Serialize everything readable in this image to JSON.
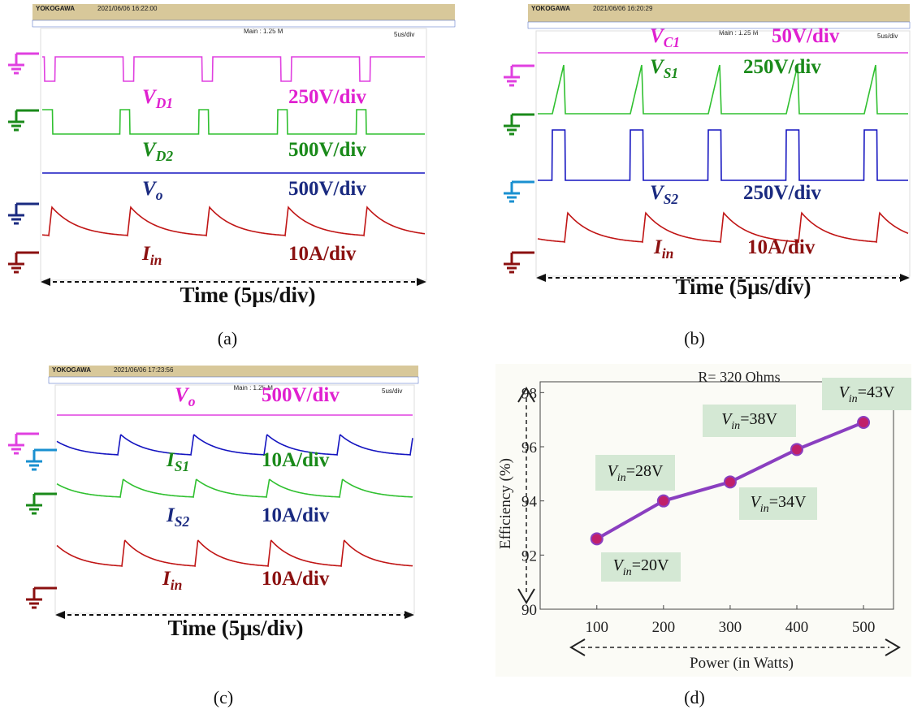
{
  "panels": [
    {
      "header": {
        "brand": "YOKOGAWA",
        "date": "2021/06/06 16:22:00",
        "main": "Main : 1.25 M",
        "timebase": "5us/div"
      },
      "traces": [
        {
          "label": "V",
          "sub": "D1",
          "scale": "250V/div"
        },
        {
          "label": "V",
          "sub": "D2",
          "scale": "500V/div"
        },
        {
          "label": "V",
          "sub": "o",
          "scale": "500V/div"
        },
        {
          "label": "I",
          "sub": "in",
          "scale": "10A/div"
        }
      ],
      "time": "Time (5μs/div)",
      "caption": "(a)"
    },
    {
      "header": {
        "brand": "YOKOGAWA",
        "date": "2021/06/06 16:20:29",
        "main": "Main : 1.25 M",
        "timebase": "5us/div"
      },
      "traces": [
        {
          "label": "V",
          "sub": "C1",
          "scale": "50V/div"
        },
        {
          "label": "V",
          "sub": "S1",
          "scale": "250V/div"
        },
        {
          "label": "V",
          "sub": "S2",
          "scale": "250V/div"
        },
        {
          "label": "I",
          "sub": "in",
          "scale": "10A/div"
        }
      ],
      "time": "Time (5μs/div)",
      "caption": "(b)"
    },
    {
      "header": {
        "brand": "YOKOGAWA",
        "date": "2021/06/06 17:23:56",
        "main": "Main : 1.25 M",
        "timebase": "5us/div"
      },
      "traces": [
        {
          "label": "V",
          "sub": "o",
          "scale": "500V/div"
        },
        {
          "label": "I",
          "sub": "S1",
          "scale": "10A/div"
        },
        {
          "label": "I",
          "sub": "S2",
          "scale": "10A/div"
        },
        {
          "label": "I",
          "sub": "in",
          "scale": "10A/div"
        }
      ],
      "time": "Time (5μs/div)",
      "caption": "(c)"
    }
  ],
  "chart_data": {
    "type": "line",
    "title": "R= 320 Ohms",
    "xlabel": "Power (in Watts)",
    "ylabel": "Efficiency (%)",
    "x": [
      100,
      200,
      300,
      400,
      500
    ],
    "values": [
      92.6,
      94.0,
      94.7,
      95.9,
      96.9
    ],
    "color": "#8a3fc0",
    "marker_color": "#c0206a",
    "point_labels": [
      {
        "label": "V",
        "sub": "in",
        "text": "=20V"
      },
      {
        "label": "V",
        "sub": "in",
        "text": "=28V"
      },
      {
        "label": "V",
        "sub": "in",
        "text": "=34V"
      },
      {
        "label": "V",
        "sub": "in",
        "text": "=38V"
      },
      {
        "label": "V",
        "sub": "in",
        "text": "=43V"
      }
    ],
    "xlim": [
      15,
      545
    ],
    "ylim": [
      90,
      98.4
    ],
    "xticks": [
      100,
      200,
      300,
      400,
      500
    ],
    "yticks": [
      90,
      92,
      94,
      96,
      98
    ],
    "caption": "(d)"
  }
}
